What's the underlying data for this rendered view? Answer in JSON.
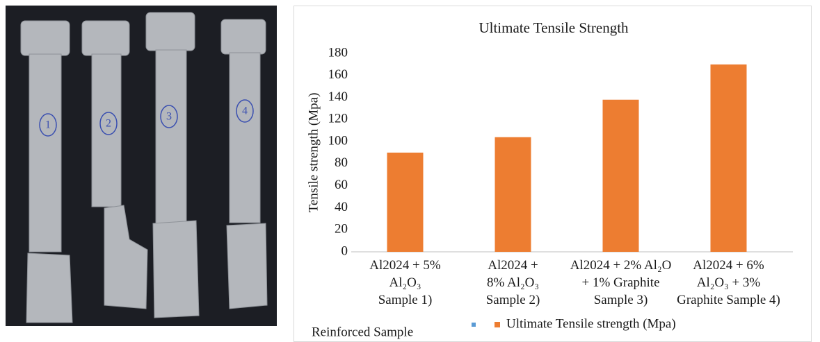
{
  "photo_labels": [
    "1",
    "2",
    "3",
    "4"
  ],
  "chart_data": {
    "type": "bar",
    "title": "Ultimate Tensile Strength",
    "y_label": "Tensile strength (Mpa)",
    "x_label": "Reinforced Sample",
    "categories": [
      "Al2024 + 5%\nAl₂O₃\nSample 1)",
      "Al2024 +\n8% Al₂O₃\nSample 2)",
      "Al2024 + 2% Al₂O\n+ 1% Graphite\nSample 3)",
      "Al2024 + 6%\nAl₂O₃ + 3%\nGraphite Sample 4)"
    ],
    "series": [
      {
        "name": "Ultimate Tensile strength (Mpa)",
        "color": "#ed7d31",
        "values": [
          90,
          104,
          138,
          170
        ]
      }
    ],
    "ylim": [
      0,
      180
    ],
    "yticks": [
      0,
      20,
      40,
      60,
      80,
      100,
      120,
      140,
      160,
      180
    ]
  }
}
